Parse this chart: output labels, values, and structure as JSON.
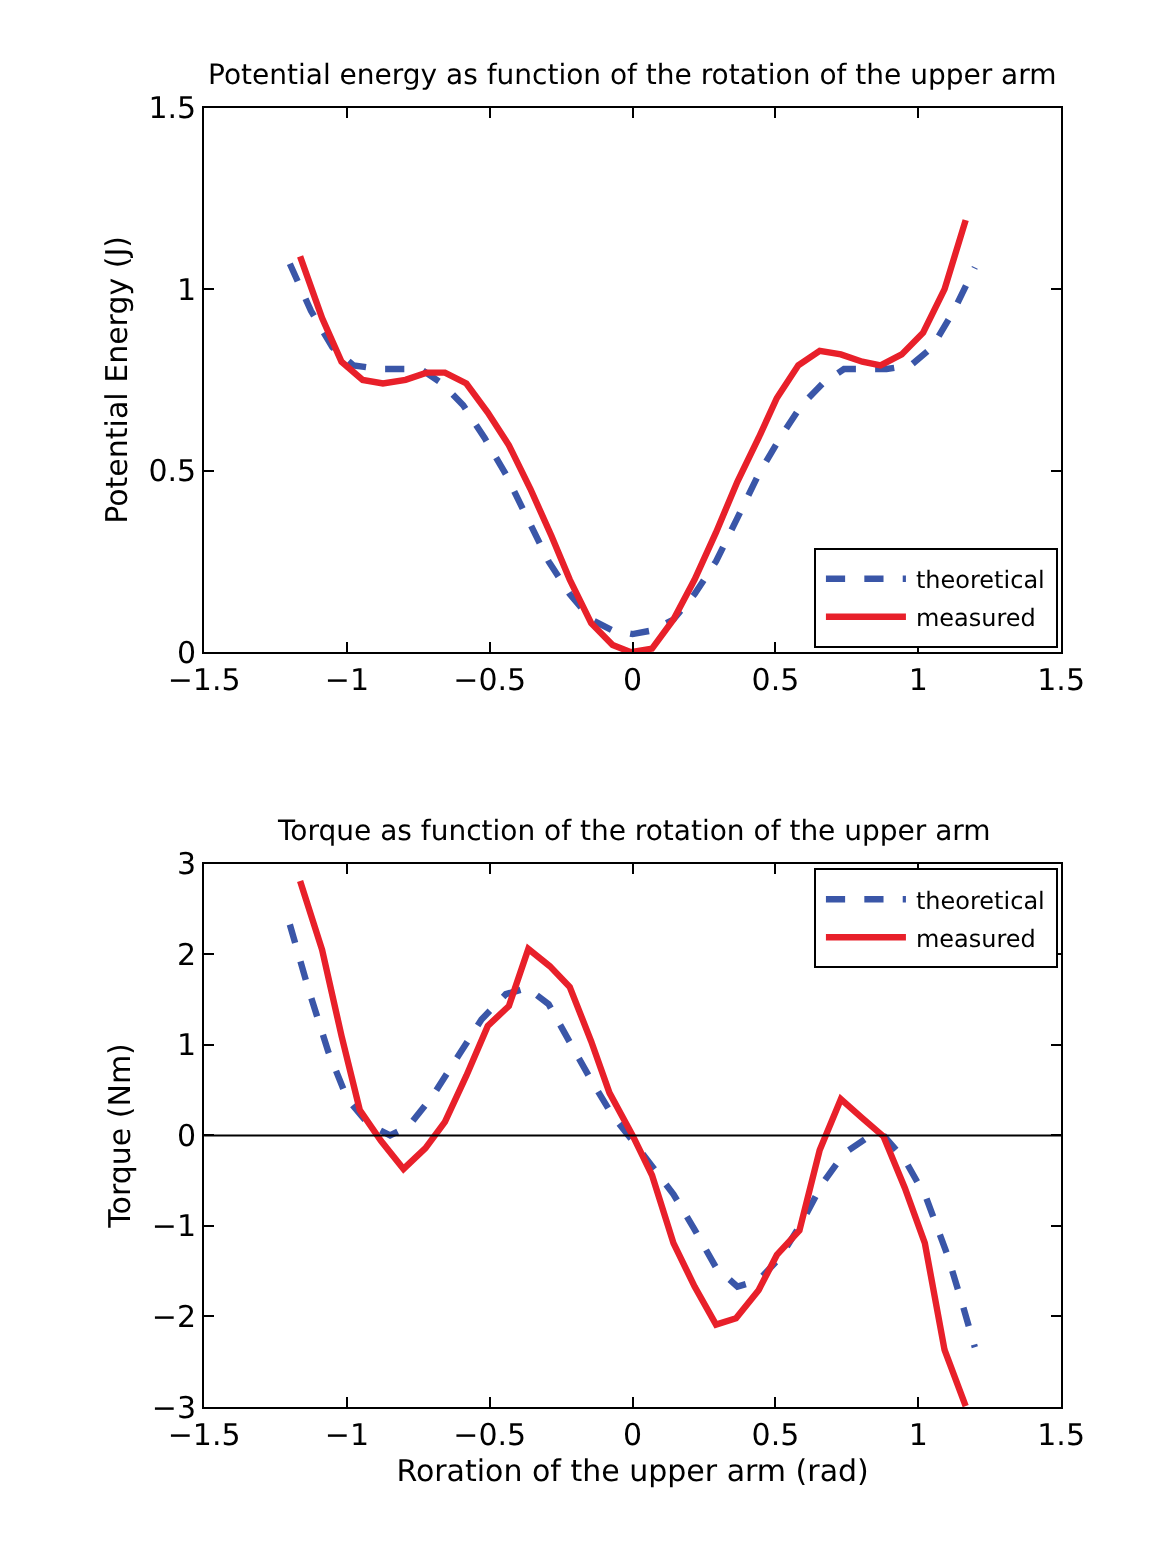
{
  "chart_data": [
    {
      "type": "line",
      "title": "Potential energy as function of the rotation of the upper arm",
      "ylabel": "Potential Energy (J)",
      "xlim": [
        -1.5,
        1.5
      ],
      "xticks": [
        -1.5,
        -1,
        -0.5,
        0,
        0.5,
        1,
        1.5
      ],
      "ylim": [
        0,
        1.5
      ],
      "yticks": [
        0,
        0.5,
        1,
        1.5
      ],
      "legend": "bottom right",
      "series": [
        {
          "name": "theoretical",
          "color": "#3a56a8",
          "line_style": "dashed",
          "x": [
            -1.2,
            -1.126,
            -1.051,
            -0.977,
            -0.891,
            -0.817,
            -0.742,
            -0.667,
            -0.593,
            -0.518,
            -0.444,
            -0.369,
            -0.294,
            -0.22,
            -0.145,
            -0.07,
            0,
            0.068,
            0.143,
            0.217,
            0.292,
            0.367,
            0.441,
            0.516,
            0.591,
            0.665,
            0.74,
            0.814,
            0.889,
            0.974,
            1.049,
            1.124,
            1.198
          ],
          "values": [
            1.07,
            0.94,
            0.84,
            0.79,
            0.78,
            0.78,
            0.78,
            0.74,
            0.68,
            0.59,
            0.49,
            0.37,
            0.25,
            0.16,
            0.09,
            0.06,
            0.05,
            0.06,
            0.09,
            0.16,
            0.25,
            0.37,
            0.49,
            0.59,
            0.68,
            0.74,
            0.78,
            0.78,
            0.78,
            0.79,
            0.84,
            0.94,
            1.06
          ]
        },
        {
          "name": "measured",
          "color": "#e8202a",
          "line_style": "solid",
          "x": [
            -1.164,
            -1.087,
            -1.019,
            -0.945,
            -0.874,
            -0.795,
            -0.721,
            -0.657,
            -0.582,
            -0.507,
            -0.433,
            -0.358,
            -0.284,
            -0.22,
            -0.145,
            -0.07,
            -0.006,
            0.068,
            0.143,
            0.217,
            0.292,
            0.367,
            0.441,
            0.505,
            0.58,
            0.655,
            0.729,
            0.804,
            0.868,
            0.942,
            1.017,
            1.092,
            1.166
          ],
          "values": [
            1.09,
            0.92,
            0.8,
            0.75,
            0.74,
            0.75,
            0.77,
            0.77,
            0.74,
            0.66,
            0.57,
            0.45,
            0.32,
            0.2,
            0.08,
            0.02,
            0,
            0.01,
            0.09,
            0.2,
            0.33,
            0.47,
            0.59,
            0.7,
            0.79,
            0.83,
            0.82,
            0.8,
            0.79,
            0.82,
            0.88,
            1.0,
            1.19
          ]
        }
      ]
    },
    {
      "type": "line",
      "title": "Torque as function of the rotation of the upper arm",
      "xlabel": "Roration of the upper arm (rad)",
      "ylabel": "Torque (Nm)",
      "xlim": [
        -1.5,
        1.5
      ],
      "xticks": [
        -1.5,
        -1,
        -0.5,
        0,
        0.5,
        1,
        1.5
      ],
      "ylim": [
        -3,
        3
      ],
      "yticks": [
        -3,
        -2,
        -1,
        0,
        1,
        2,
        3
      ],
      "legend": "top right",
      "ref_lines": [
        {
          "axis": "y",
          "value": 0,
          "color": "#000000"
        }
      ],
      "series": [
        {
          "name": "theoretical",
          "color": "#3a56a8",
          "line_style": "dashed",
          "x": [
            -1.2,
            -1.136,
            -1.066,
            -0.998,
            -0.923,
            -0.849,
            -0.785,
            -0.699,
            -0.614,
            -0.529,
            -0.444,
            -0.369,
            -0.294,
            -0.22,
            -0.145,
            -0.07,
            0,
            0.068,
            0.143,
            0.217,
            0.292,
            0.367,
            0.441,
            0.516,
            0.591,
            0.665,
            0.74,
            0.814,
            0.878,
            0.953,
            1.028,
            1.102,
            1.156,
            1.198
          ],
          "values": [
            2.33,
            1.63,
            0.93,
            0.4,
            0.12,
            0.0,
            0.1,
            0.44,
            0.86,
            1.28,
            1.56,
            1.63,
            1.45,
            1.03,
            0.61,
            0.22,
            -0.06,
            -0.34,
            -0.65,
            -1.04,
            -1.46,
            -1.67,
            -1.6,
            -1.35,
            -0.97,
            -0.53,
            -0.2,
            -0.04,
            0.0,
            -0.27,
            -0.69,
            -1.32,
            -1.88,
            -2.34
          ]
        },
        {
          "name": "measured",
          "color": "#e8202a",
          "line_style": "solid",
          "x": [
            -1.164,
            -1.087,
            -1.019,
            -0.955,
            -0.881,
            -0.802,
            -0.725,
            -0.657,
            -0.582,
            -0.507,
            -0.433,
            -0.365,
            -0.29,
            -0.22,
            -0.145,
            -0.081,
            0,
            0.068,
            0.143,
            0.217,
            0.292,
            0.362,
            0.441,
            0.505,
            0.584,
            0.655,
            0.729,
            0.804,
            0.878,
            0.953,
            1.023,
            1.092,
            1.166
          ],
          "values": [
            2.81,
            2.05,
            1.1,
            0.28,
            -0.06,
            -0.37,
            -0.14,
            0.15,
            0.66,
            1.21,
            1.43,
            2.06,
            1.87,
            1.64,
            1.04,
            0.47,
            0.0,
            -0.44,
            -1.19,
            -1.67,
            -2.09,
            -2.02,
            -1.71,
            -1.32,
            -1.05,
            -0.16,
            0.4,
            0.19,
            -0.01,
            -0.58,
            -1.19,
            -2.37,
            -2.99
          ]
        }
      ]
    }
  ]
}
